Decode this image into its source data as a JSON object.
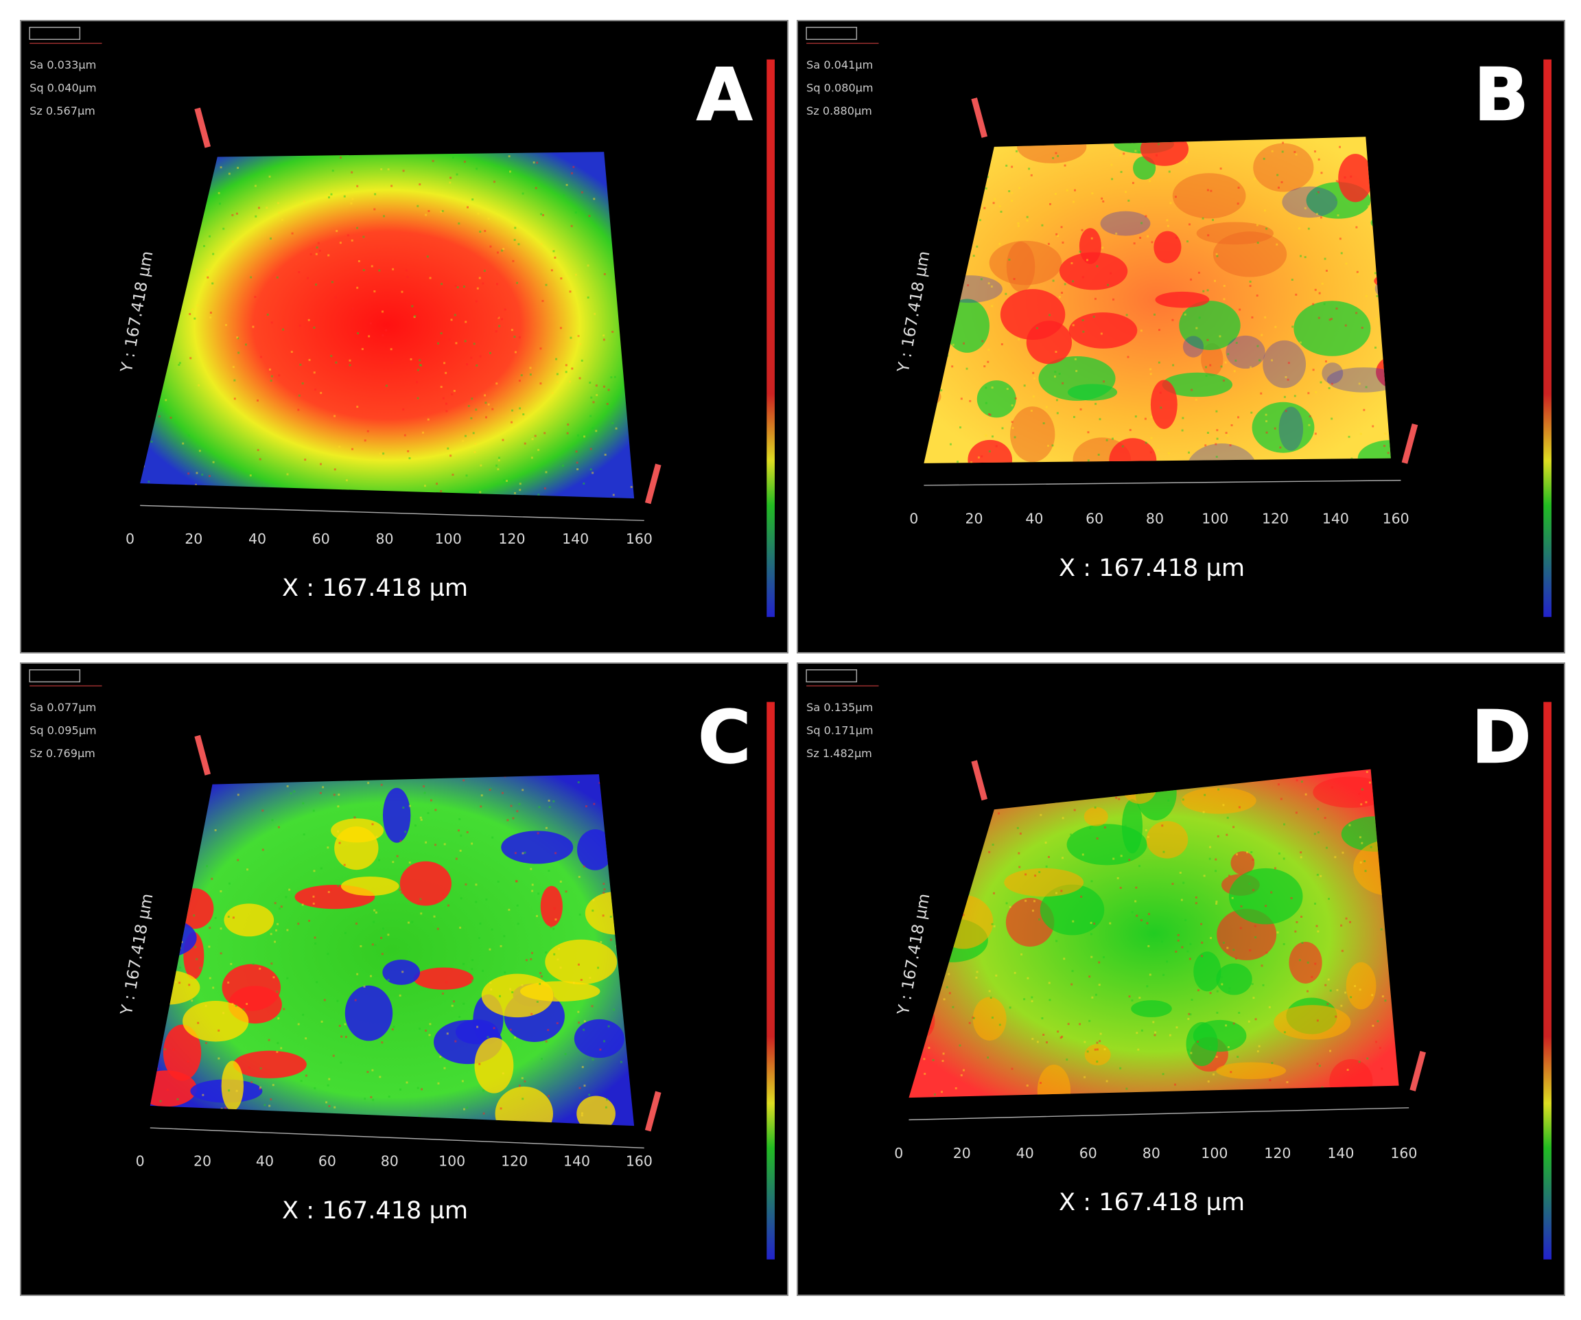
{
  "panels": [
    {
      "label": "A",
      "stats": [
        "Sa 0.033µm",
        "Sq 0.040µm",
        "Sz 0.567µm"
      ],
      "x_ticks": [
        "0",
        "20",
        "40",
        "60",
        "80",
        "100",
        "120",
        "140",
        "160"
      ],
      "x_label": "X : 167.418 µm",
      "y_label": "Y : 167.418 µm"
    },
    {
      "label": "B",
      "stats": [
        "Sa 0.041µm",
        "Sq 0.080µm",
        "Sz 0.880µm"
      ],
      "x_ticks": [
        "0",
        "20",
        "40",
        "60",
        "80",
        "100",
        "120",
        "140",
        "160"
      ],
      "x_label": "X : 167.418 µm",
      "y_label": "Y : 167.418 µm"
    },
    {
      "label": "C",
      "stats": [
        "Sa 0.077µm",
        "Sq 0.095µm",
        "Sz 0.769µm"
      ],
      "x_ticks": [
        "0",
        "20",
        "40",
        "60",
        "80",
        "100",
        "120",
        "140",
        "160"
      ],
      "x_label": "X : 167.418 µm",
      "y_label": "Y : 167.418 µm"
    },
    {
      "label": "D",
      "stats": [
        "Sa 0.135µm",
        "Sq 0.171µm",
        "Sz 1.482µm"
      ],
      "x_ticks": [
        "0",
        "20",
        "40",
        "60",
        "80",
        "100",
        "120",
        "140",
        "160"
      ],
      "x_label": "X : 167.418 µm",
      "y_label": "Y : 167.418 µm"
    }
  ]
}
